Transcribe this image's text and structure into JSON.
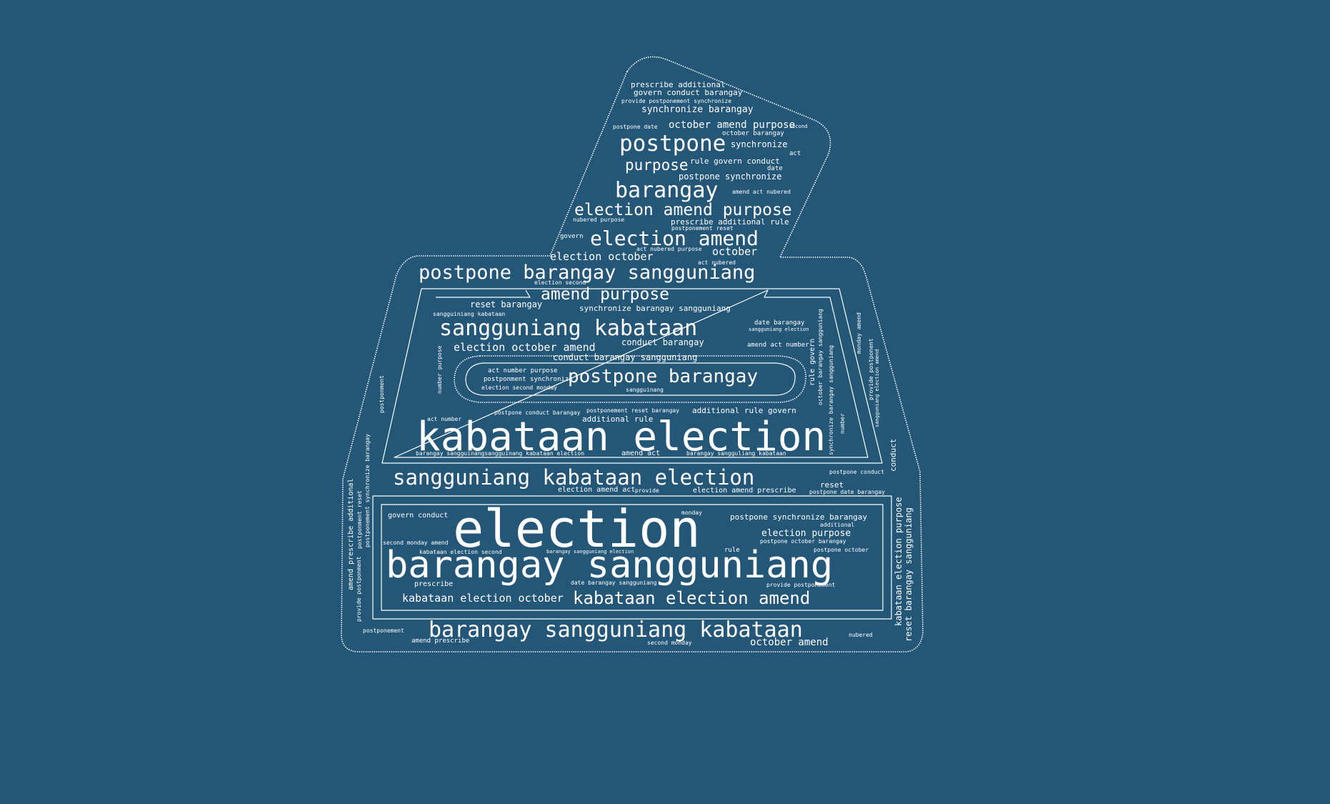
{
  "colors": {
    "background": "#235677",
    "text": "#ffffff"
  },
  "shape_icon": "ballot-box-icon",
  "words": {
    "w1": "prescribe additional",
    "w2": "govern conduct barangay",
    "w3": "provide postponement synchronize",
    "w4": "synchronize barangay",
    "w5": "postpone date",
    "w6": "october amend purpose",
    "w7": "second",
    "w8": "october barangay",
    "w9": "postpone",
    "w10": "synchronize",
    "w11": "act",
    "w12": "purpose",
    "w13": "rule govern conduct",
    "w14": "date",
    "w15": "postpone synchronize",
    "w16": "barangay",
    "w17": "amend act nubered",
    "w18": "election amend purpose",
    "w19": "nubered purpose",
    "w20": "prescribe additional rule",
    "w21": "postponement reset",
    "w22": "govern",
    "w23": "election amend",
    "w24": "act nubered purpose",
    "w25": "election october",
    "w26": "october",
    "w27": "act nubered",
    "w28": "postpone barangay sangguniang",
    "w29": "election second",
    "w30": "amend purpose",
    "w31": "reset barangay",
    "w32": "synchronize barangay sangguniang",
    "w33": "sangguiniang kabataan",
    "w34": "sangguniang kabataan",
    "w35": "date barangay",
    "w36": "sangguniang election",
    "w37": "conduct barangay",
    "w38": "election october amend",
    "w39": "amend act number",
    "w40": "conduct barangay sangguniang",
    "w41": "act number purpose",
    "w42": "postpone barangay",
    "w43": "postponment synchronize",
    "w44": "election second monday",
    "w45": "sangguinang",
    "w46": "postpone conduct barangay",
    "w47": "postponement reset barangay",
    "w48": "additional rule govern",
    "w49": "act number",
    "w50": "additional rule",
    "w51": "kabataan election",
    "w52": "barangay sangguinangsangguinang kabataan election",
    "w53": "amend act",
    "w54": "barangay sangguliang kabataan",
    "w55": "postpone conduct",
    "w56": "sangguniang kabataan election",
    "w57": "election amend act",
    "w58": "provide",
    "w59": "election amend prescribe",
    "w60": "reset",
    "w61": "postpone date barangay",
    "w62": "govern conduct",
    "w63": "monday",
    "w64": "postpone synchronize barangay",
    "w65": "election",
    "w66": "additional",
    "w67": "election purpose",
    "w68": "second monday amend",
    "w69": "barangay sangguniang election",
    "w70": "rule",
    "w71": "postpone october barangay",
    "w72": "kabataan election second",
    "w73": "postpone october",
    "w74": "barangay sangguniang",
    "w75": "prescribe",
    "w76": "date barangay sangguniang",
    "w77": "provide postponement",
    "w78": "kabataan election october",
    "w79": "kabataan election amend",
    "w80": "barangay sangguniang kabataan",
    "w81": "postponement",
    "w82": "amend prescribe",
    "w83": "second monday",
    "w84": "october amend",
    "w85": "nubered",
    "w86": "amend prescribe additional",
    "w87": "postponement synchronize barangay",
    "w88": "postponment reset",
    "w89": "provide postponment",
    "w90": "postponment",
    "w91": "number purpose",
    "w92": "rule govern",
    "w93": "october barangay sangguniang",
    "w94": "synchronize barangay sangguniang",
    "w95": "number",
    "w96": "monday amend",
    "w97": "provide postponent",
    "w98": "sangguniang election amend",
    "w99": "conduct",
    "w100": "kabataan election purpose",
    "w101": "reset barangay sangguniang"
  }
}
